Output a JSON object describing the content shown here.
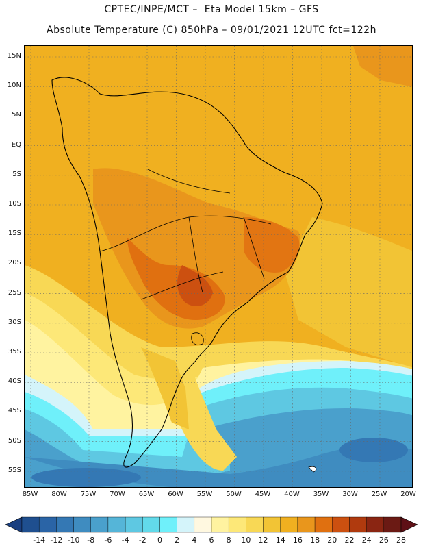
{
  "header": {
    "line1": "CPTEC/INPE/MCT –  Eta Model 15km – GFS",
    "line2": "Absolute Temperature (C) 850hPa – 09/01/2021 12UTC fct=122h"
  },
  "axes": {
    "lat_labels": [
      "15N",
      "10N",
      "5N",
      "EQ",
      "5S",
      "10S",
      "15S",
      "20S",
      "25S",
      "30S",
      "35S",
      "40S",
      "45S",
      "50S",
      "55S"
    ],
    "lon_labels": [
      "85W",
      "80W",
      "75W",
      "70W",
      "65W",
      "60W",
      "55W",
      "50W",
      "45W",
      "40W",
      "35W",
      "30W",
      "25W",
      "20W"
    ]
  },
  "colorbar": {
    "labels": [
      "-14",
      "-12",
      "-10",
      "-8",
      "-6",
      "-4",
      "-2",
      "0",
      "2",
      "4",
      "6",
      "8",
      "10",
      "12",
      "14",
      "16",
      "18",
      "20",
      "22",
      "24",
      "26",
      "28"
    ],
    "colors": [
      "#1f4f8f",
      "#2a64a6",
      "#3478b4",
      "#3f8cc0",
      "#4aa0cc",
      "#55b5d8",
      "#5ec8e2",
      "#62daea",
      "#6ff0fa",
      "#d4f4fa",
      "#fff8e0",
      "#fff3a0",
      "#fde878",
      "#f8d855",
      "#f2c435",
      "#f0b020",
      "#e9961c",
      "#e07010",
      "#cc5010",
      "#b03a0e",
      "#8a2512",
      "#6b1a14"
    ]
  }
}
